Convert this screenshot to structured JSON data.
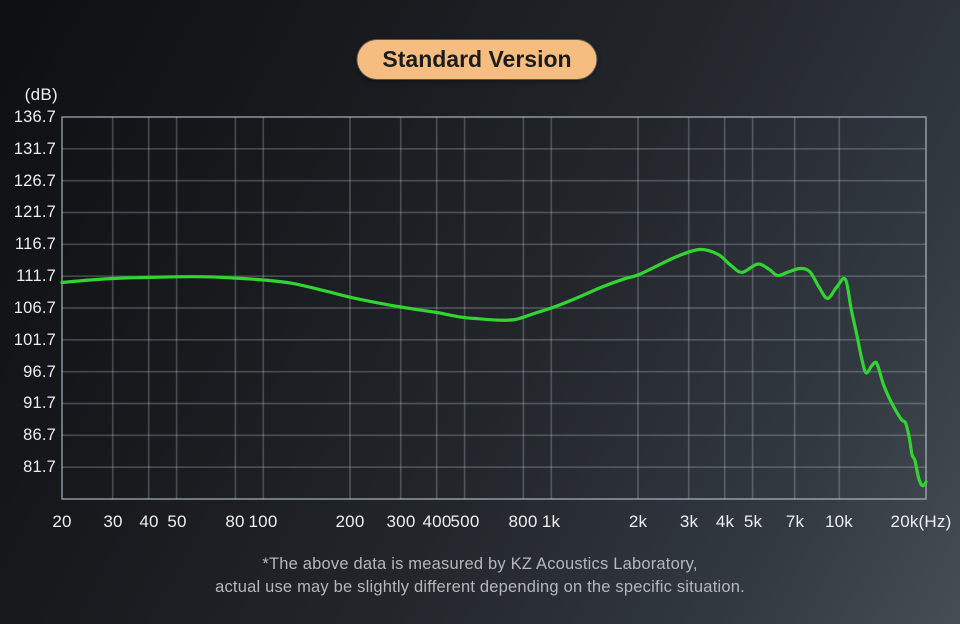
{
  "badge": {
    "label": "Standard Version"
  },
  "footer": {
    "line1": "*The above data is measured by KZ Acoustics Laboratory,",
    "line2": "actual use may be slightly different depending on the specific situation."
  },
  "colors": {
    "curve": "#31d431",
    "grid": "rgba(190,200,212,0.28)",
    "grid_border": "rgba(190,200,212,0.38)",
    "badge_bg": "#f6bd81",
    "badge_text": "#1b1c1e",
    "axis_text": "#eceef0",
    "footer_text": "#b4b8bd"
  },
  "chart_data": {
    "type": "line",
    "title": "Standard Version",
    "subtitle": "",
    "xlabel": "(Hz)",
    "ylabel": "(dB)",
    "x_scale": "log",
    "xlim": [
      20,
      20000
    ],
    "ylim": [
      76.7,
      136.7
    ],
    "grid": true,
    "legend_position": "none",
    "y_ticks": [
      136.7,
      131.7,
      126.7,
      121.7,
      116.7,
      111.7,
      106.7,
      101.7,
      96.7,
      91.7,
      86.7,
      81.7
    ],
    "x_ticks": [
      {
        "f": 20,
        "label": "20"
      },
      {
        "f": 30,
        "label": "30"
      },
      {
        "f": 40,
        "label": "40"
      },
      {
        "f": 50,
        "label": "50"
      },
      {
        "f": 80,
        "label": "80"
      },
      {
        "f": 100,
        "label": "100"
      },
      {
        "f": 200,
        "label": "200"
      },
      {
        "f": 300,
        "label": "300"
      },
      {
        "f": 400,
        "label": "400"
      },
      {
        "f": 500,
        "label": "500"
      },
      {
        "f": 800,
        "label": "800"
      },
      {
        "f": 1000,
        "label": "1k"
      },
      {
        "f": 2000,
        "label": "2k"
      },
      {
        "f": 3000,
        "label": "3k"
      },
      {
        "f": 4000,
        "label": "4k"
      },
      {
        "f": 5000,
        "label": "5k"
      },
      {
        "f": 7000,
        "label": "7k"
      },
      {
        "f": 10000,
        "label": "10k"
      },
      {
        "f": 20000,
        "label": "20k(Hz)",
        "dx": -5
      }
    ],
    "series": [
      {
        "name": "frequency-response-standard-version",
        "points": [
          [
            20,
            110.7
          ],
          [
            25,
            111.1
          ],
          [
            32,
            111.4
          ],
          [
            40,
            111.5
          ],
          [
            50,
            111.6
          ],
          [
            63,
            111.6
          ],
          [
            80,
            111.4
          ],
          [
            100,
            111.1
          ],
          [
            125,
            110.6
          ],
          [
            160,
            109.5
          ],
          [
            200,
            108.4
          ],
          [
            250,
            107.5
          ],
          [
            315,
            106.7
          ],
          [
            400,
            106.0
          ],
          [
            480,
            105.3
          ],
          [
            560,
            105.0
          ],
          [
            650,
            104.8
          ],
          [
            750,
            104.9
          ],
          [
            880,
            105.9
          ],
          [
            1000,
            106.7
          ],
          [
            1200,
            108.1
          ],
          [
            1500,
            110.0
          ],
          [
            1800,
            111.3
          ],
          [
            2000,
            111.9
          ],
          [
            2400,
            113.6
          ],
          [
            2800,
            115.0
          ],
          [
            3300,
            115.9
          ],
          [
            3800,
            115.1
          ],
          [
            4200,
            113.4
          ],
          [
            4600,
            112.3
          ],
          [
            5200,
            113.6
          ],
          [
            5700,
            112.8
          ],
          [
            6100,
            111.8
          ],
          [
            6600,
            112.3
          ],
          [
            7300,
            112.9
          ],
          [
            7900,
            112.4
          ],
          [
            8500,
            110.0
          ],
          [
            9100,
            108.2
          ],
          [
            9800,
            110.0
          ],
          [
            10500,
            111.2
          ],
          [
            11000,
            106.5
          ],
          [
            11500,
            102.5
          ],
          [
            12000,
            98.5
          ],
          [
            12400,
            96.5
          ],
          [
            13000,
            97.7
          ],
          [
            13500,
            98.0
          ],
          [
            14200,
            94.8
          ],
          [
            15000,
            92.3
          ],
          [
            15800,
            90.4
          ],
          [
            16500,
            89.1
          ],
          [
            17000,
            88.6
          ],
          [
            17500,
            86.3
          ],
          [
            17900,
            83.6
          ],
          [
            18300,
            82.8
          ],
          [
            18800,
            80.2
          ],
          [
            19300,
            78.9
          ],
          [
            19700,
            78.9
          ],
          [
            20000,
            79.4
          ]
        ]
      }
    ]
  }
}
